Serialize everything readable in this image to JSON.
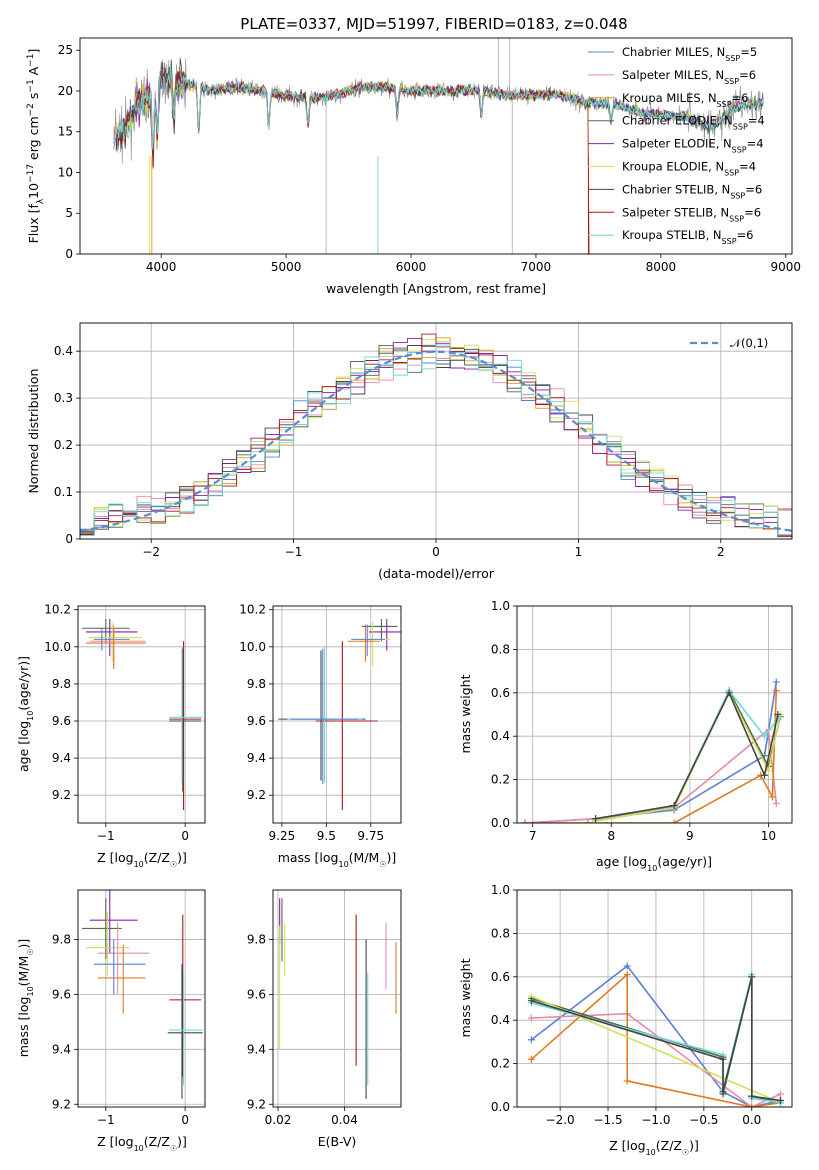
{
  "title": "PLATE=0337, MJD=51997, FIBERID=0183, z=0.048",
  "colors": {
    "chabrier_miles": "#5b7fd6",
    "salpeter_miles": "#e88aa6",
    "kroupa_miles": "#d9a11e",
    "chabrier_elodie": "#4a6f4a",
    "salpeter_elodie": "#8b1fb0",
    "kroupa_elodie": "#d2e05a",
    "chabrier_stelib": "#444444",
    "salpeter_stelib": "#a61b1b",
    "kroupa_stelib": "#6fd8dc",
    "data": "#808080",
    "normal": "#5b8ad6",
    "orange": "#e07b20"
  },
  "chart_data": [
    {
      "id": "spectrum",
      "type": "line",
      "title": "PLATE=0337, MJD=51997, FIBERID=0183, z=0.048",
      "xlabel": "wavelength [Angstrom, rest frame]",
      "ylabel": "Flux [f",
      "xlim": [
        3350,
        9050
      ],
      "ylim": [
        0,
        26.5
      ],
      "xticks": [
        4000,
        5000,
        6000,
        7000,
        8000,
        9000
      ],
      "yticks": [
        0,
        5,
        10,
        15,
        20,
        25
      ],
      "grid": false,
      "legend_position": "top-right",
      "legend": [
        "Chabrier MILES, N",
        "Salpeter MILES, N",
        "Kroupa MILES, N",
        "Chabrier ELODIE, N",
        "Salpeter ELODIE, N",
        "Kroupa ELODIE, N",
        "Chabrier STELIB, N",
        "Salpeter STELIB, N",
        "Kroupa STELIB, N"
      ],
      "legend_ssp": [
        "5",
        "6",
        "6",
        "4",
        "4",
        "4",
        "6",
        "6",
        "6"
      ],
      "continuum": [
        [
          3600,
          14
        ],
        [
          3700,
          15
        ],
        [
          3800,
          18
        ],
        [
          3900,
          19.5
        ],
        [
          4000,
          21.5
        ],
        [
          4200,
          21
        ],
        [
          4400,
          20
        ],
        [
          4600,
          20.5
        ],
        [
          4800,
          20
        ],
        [
          5000,
          19.5
        ],
        [
          5200,
          19
        ],
        [
          5400,
          19.5
        ],
        [
          5600,
          20.5
        ],
        [
          5800,
          20.5
        ],
        [
          6000,
          20
        ],
        [
          6200,
          20
        ],
        [
          6400,
          20
        ],
        [
          6600,
          20
        ],
        [
          6800,
          19.5
        ],
        [
          7000,
          19.5
        ],
        [
          7200,
          19.5
        ],
        [
          7400,
          18.5
        ],
        [
          7600,
          18.5
        ],
        [
          7800,
          17.5
        ],
        [
          8000,
          17
        ],
        [
          8200,
          17
        ],
        [
          8400,
          15.5
        ],
        [
          8600,
          18
        ],
        [
          8800,
          18.5
        ]
      ]
    },
    {
      "id": "residuals",
      "type": "step",
      "xlabel": "(data-model)/error",
      "ylabel": "Normed distribution",
      "xlim": [
        -2.5,
        2.5
      ],
      "ylim": [
        0,
        0.46
      ],
      "xticks": [
        -2,
        -1,
        0,
        1,
        2
      ],
      "yticks": [
        0.0,
        0.1,
        0.2,
        0.3,
        0.4
      ],
      "grid": true,
      "legend": [
        "𝒩(0,1)"
      ],
      "legend_position": "top-right"
    },
    {
      "id": "age-vs-z",
      "type": "errorbar",
      "xlabel": "Z [log",
      "ylabel": "age  [log",
      "xlim": [
        -1.35,
        0.25
      ],
      "ylim": [
        9.05,
        10.22
      ],
      "xticks": [
        -1,
        0
      ],
      "yticks": [
        9.2,
        9.4,
        9.6,
        9.8,
        10.0,
        10.2
      ]
    },
    {
      "id": "age-vs-mass",
      "type": "errorbar",
      "xlabel": "mass [log",
      "ylabel": "",
      "xlim": [
        9.2,
        9.92
      ],
      "ylim": [
        9.05,
        10.22
      ],
      "xticks": [
        9.25,
        9.5,
        9.75
      ],
      "yticks": [
        9.2,
        9.4,
        9.6,
        9.8,
        10.0,
        10.2
      ]
    },
    {
      "id": "massweight-vs-age",
      "type": "line",
      "xlabel": "age  [log",
      "ylabel": "mass weight",
      "xlim": [
        6.8,
        10.3
      ],
      "ylim": [
        0,
        1
      ],
      "xticks": [
        7,
        8,
        9,
        10
      ],
      "yticks": [
        0.0,
        0.2,
        0.4,
        0.6,
        0.8,
        1.0
      ],
      "grid": true,
      "series": [
        {
          "color": "#5b7fd6",
          "points": [
            [
              6.9,
              0.0
            ],
            [
              7.8,
              0.02
            ],
            [
              8.8,
              0.06
            ],
            [
              9.95,
              0.31
            ],
            [
              10.1,
              0.65
            ]
          ]
        },
        {
          "color": "#e88aa6",
          "points": [
            [
              6.9,
              0.0
            ],
            [
              7.8,
              0.02
            ],
            [
              8.8,
              0.07
            ],
            [
              10.0,
              0.43
            ],
            [
              10.1,
              0.09
            ]
          ]
        },
        {
          "color": "#e07b20",
          "points": [
            [
              6.9,
              0.0
            ],
            [
              7.7,
              0.0
            ],
            [
              8.8,
              0.0
            ],
            [
              9.9,
              0.22
            ],
            [
              10.05,
              0.12
            ],
            [
              10.1,
              0.61
            ]
          ]
        },
        {
          "color": "#4a6f4a",
          "points": [
            [
              7.8,
              0.01
            ],
            [
              8.8,
              0.07
            ],
            [
              9.5,
              0.61
            ],
            [
              10.0,
              0.26
            ],
            [
              10.15,
              0.49
            ]
          ]
        },
        {
          "color": "#d2e05a",
          "points": [
            [
              7.8,
              0.01
            ],
            [
              8.8,
              0.07
            ],
            [
              9.5,
              0.6
            ],
            [
              10.0,
              0.24
            ],
            [
              10.15,
              0.5
            ]
          ]
        },
        {
          "color": "#6fd8dc",
          "points": [
            [
              7.8,
              0.02
            ],
            [
              8.8,
              0.08
            ],
            [
              9.5,
              0.61
            ],
            [
              9.95,
              0.4
            ],
            [
              10.12,
              0.48
            ]
          ]
        },
        {
          "color": "#444444",
          "points": [
            [
              7.8,
              0.02
            ],
            [
              8.8,
              0.08
            ],
            [
              9.5,
              0.6
            ],
            [
              9.95,
              0.22
            ],
            [
              10.12,
              0.5
            ]
          ]
        }
      ]
    },
    {
      "id": "mass-vs-z",
      "type": "errorbar",
      "xlabel": "Z [log",
      "ylabel": "mass [log",
      "xlim": [
        -1.35,
        0.25
      ],
      "ylim": [
        9.19,
        9.98
      ],
      "xticks": [
        -1,
        0
      ],
      "yticks": [
        9.2,
        9.4,
        9.6,
        9.8
      ]
    },
    {
      "id": "mass-vs-ebv",
      "type": "errorbar",
      "xlabel": "E(B-V)",
      "ylabel": "",
      "xlim": [
        0.0185,
        0.057
      ],
      "ylim": [
        9.19,
        9.98
      ],
      "xticks": [
        0.02,
        0.04
      ],
      "yticks": [
        9.2,
        9.4,
        9.6,
        9.8
      ]
    },
    {
      "id": "massweight-vs-z",
      "type": "line",
      "xlabel": "Z [log",
      "ylabel": "mass weight",
      "xlim": [
        -2.45,
        0.42
      ],
      "ylim": [
        0,
        1
      ],
      "xticks": [
        -2.0,
        -1.5,
        -1.0,
        -0.5,
        0.0
      ],
      "yticks": [
        0.0,
        0.2,
        0.4,
        0.6,
        0.8,
        1.0
      ],
      "grid": true,
      "series": [
        {
          "color": "#5b7fd6",
          "points": [
            [
              -2.3,
              0.31
            ],
            [
              -1.3,
              0.65
            ],
            [
              -0.3,
              0.07
            ],
            [
              0.0,
              0.0
            ],
            [
              0.3,
              0.03
            ]
          ]
        },
        {
          "color": "#e88aa6",
          "points": [
            [
              -2.3,
              0.41
            ],
            [
              -1.3,
              0.43
            ],
            [
              0.0,
              0.0
            ],
            [
              0.3,
              0.06
            ]
          ]
        },
        {
          "color": "#e07b20",
          "points": [
            [
              -2.3,
              0.22
            ],
            [
              -1.3,
              0.61
            ],
            [
              -1.3,
              0.12
            ],
            [
              0.0,
              0.0
            ],
            [
              0.3,
              0.02
            ]
          ]
        },
        {
          "color": "#4a6f4a",
          "points": [
            [
              -2.3,
              0.5
            ],
            [
              -0.3,
              0.23
            ],
            [
              -0.3,
              0.06
            ],
            [
              0.0,
              0.6
            ],
            [
              0.0,
              0.05
            ],
            [
              0.3,
              0.02
            ]
          ]
        },
        {
          "color": "#d2e05a",
          "points": [
            [
              -2.3,
              0.51
            ],
            [
              0.3,
              0.02
            ]
          ]
        },
        {
          "color": "#6fd8dc",
          "points": [
            [
              -2.3,
              0.48
            ],
            [
              -0.3,
              0.24
            ],
            [
              -0.3,
              0.08
            ],
            [
              0.0,
              0.61
            ],
            [
              0.0,
              0.04
            ],
            [
              0.3,
              0.02
            ]
          ]
        },
        {
          "color": "#444444",
          "points": [
            [
              -2.3,
              0.49
            ],
            [
              -0.3,
              0.22
            ],
            [
              -0.3,
              0.07
            ],
            [
              0.0,
              0.6
            ],
            [
              0.0,
              0.05
            ],
            [
              0.3,
              0.03
            ]
          ]
        }
      ]
    }
  ]
}
